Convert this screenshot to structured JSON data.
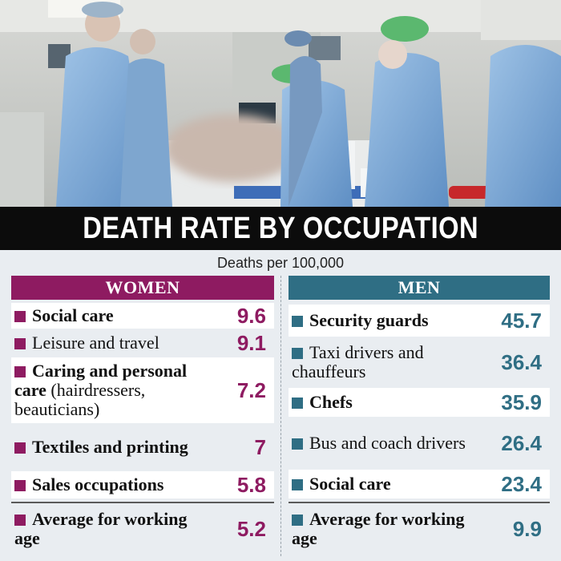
{
  "title": "DEATH RATE BY OCCUPATION",
  "subtitle": "Deaths per 100,000",
  "colors": {
    "women": "#8e1b61",
    "men": "#2f6e84",
    "banner": "#0c0c0c"
  },
  "chart_data": {
    "type": "table",
    "title": "DEATH RATE BY OCCUPATION",
    "subtitle": "Deaths per 100,000",
    "series": [
      {
        "name": "WOMEN",
        "rows": [
          {
            "label_bold": "Social care",
            "label_normal": "",
            "value": "9.6"
          },
          {
            "label_bold": "",
            "label_normal": "Leisure and travel",
            "value": "9.1"
          },
          {
            "label_bold": "Caring and personal care",
            "label_normal": " (hairdressers, beauticians)",
            "value": "7.2"
          },
          {
            "label_bold": "Textiles and printing",
            "label_normal": "",
            "value": "7"
          },
          {
            "label_bold": "Sales occupations",
            "label_normal": "",
            "value": "5.8"
          },
          {
            "label_bold": "Average for working age",
            "label_normal": "",
            "value": "5.2"
          }
        ]
      },
      {
        "name": "MEN",
        "rows": [
          {
            "label_bold": "Security guards",
            "label_normal": "",
            "value": "45.7"
          },
          {
            "label_bold": "",
            "label_normal": "Taxi drivers and chauffeurs",
            "value": "36.4"
          },
          {
            "label_bold": "Chefs",
            "label_normal": "",
            "value": "35.9"
          },
          {
            "label_bold": "",
            "label_normal": "Bus and coach drivers",
            "value": "26.4"
          },
          {
            "label_bold": "Social care",
            "label_normal": "",
            "value": "23.4"
          },
          {
            "label_bold": "Average for working age",
            "label_normal": "",
            "value": "9.9"
          }
        ]
      }
    ]
  }
}
